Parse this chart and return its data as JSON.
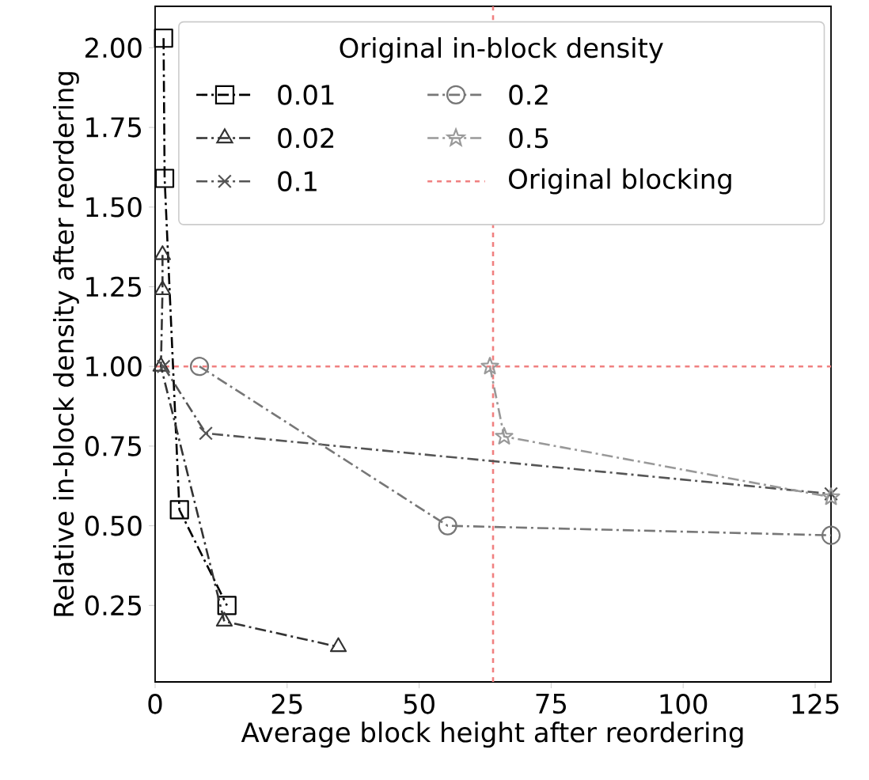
{
  "chart_data": {
    "type": "line",
    "xlabel": "Average block height after reordering",
    "ylabel": "Relative in-block density after reordering",
    "legend_title": "Original in-block density",
    "xlim": [
      0,
      128
    ],
    "ylim": [
      0.01,
      2.13
    ],
    "xticks": [
      0,
      25,
      50,
      75,
      100,
      125
    ],
    "yticks": [
      0.25,
      {
        "value": 0.5,
        "label": "0.50"
      },
      0.75,
      {
        "value": 1.0,
        "label": "1.00"
      },
      1.25,
      {
        "value": 1.5,
        "label": "1.50"
      },
      1.75,
      {
        "value": 2.0,
        "label": "2.00"
      }
    ],
    "legend": "top right",
    "line_style": "dashdot",
    "grid": false,
    "series": [
      {
        "name": "0.01",
        "color": "#000000",
        "marker": "square",
        "x": [
          1.6,
          1.8,
          4.6,
          13.6
        ],
        "values": [
          2.03,
          1.59,
          0.55,
          0.25
        ]
      },
      {
        "name": "0.02",
        "color": "#333333",
        "marker": "triangle",
        "x": [
          1.4,
          1.4,
          1.1,
          13.1,
          34.7
        ],
        "values": [
          1.35,
          1.24,
          1.0,
          0.2,
          0.12
        ]
      },
      {
        "name": "0.1",
        "color": "#555555",
        "marker": "cross",
        "x": [
          1.6,
          9.6,
          128
        ],
        "values": [
          1.0,
          0.79,
          0.6
        ]
      },
      {
        "name": "0.2",
        "color": "#777777",
        "marker": "circle",
        "x": [
          8.4,
          55.4,
          128
        ],
        "values": [
          1.0,
          0.5,
          0.47
        ]
      },
      {
        "name": "0.5",
        "color": "#999999",
        "marker": "star",
        "x": [
          63.4,
          66.1,
          128
        ],
        "values": [
          1.0,
          0.78,
          0.59
        ]
      }
    ],
    "ref_lines": [
      {
        "axis": "y",
        "value": 1.0,
        "label": "Original blocking",
        "color": "#f08080",
        "line_style": "dashed"
      },
      {
        "axis": "x",
        "value": 64,
        "color": "#f08080",
        "line_style": "dashed"
      }
    ]
  }
}
